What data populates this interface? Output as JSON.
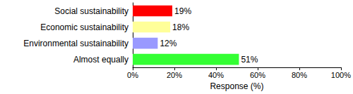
{
  "chart_data": {
    "type": "bar",
    "orientation": "horizontal",
    "categories": [
      "Social sustainability",
      "Economic sustainability",
      "Environmental sustainability",
      "Almost equally"
    ],
    "values": [
      19,
      18,
      12,
      51
    ],
    "value_labels": [
      "19%",
      "18%",
      "12%",
      "51%"
    ],
    "colors": [
      "#ff0000",
      "#ffff99",
      "#9999ff",
      "#33ff33"
    ],
    "x_label": "Response (%)",
    "xlim": [
      0,
      100
    ],
    "xticks": [
      {
        "value": 0,
        "label": "0%"
      },
      {
        "value": 20,
        "label": "20%"
      },
      {
        "value": 40,
        "label": "40%"
      },
      {
        "value": 60,
        "label": "60%"
      },
      {
        "value": 80,
        "label": "80%"
      },
      {
        "value": 100,
        "label": "100%"
      }
    ],
    "grid": false,
    "data_labels": true
  }
}
